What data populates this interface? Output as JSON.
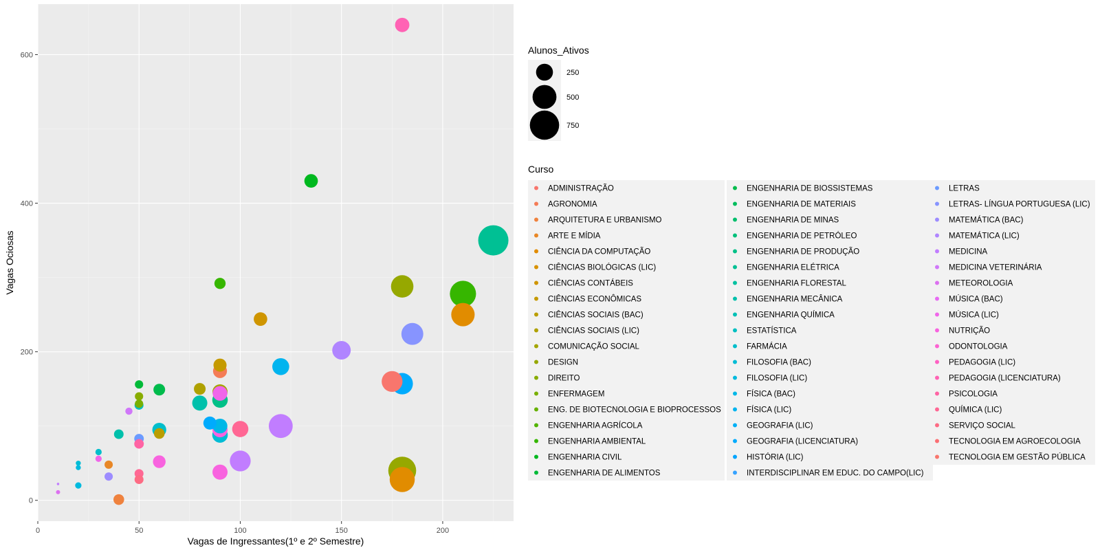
{
  "chart_data": {
    "type": "scatter",
    "xlabel": "Vagas de Ingressantes(1º e 2º Semestre)",
    "ylabel": "Vagas Ociosas",
    "xlim": [
      0,
      235
    ],
    "ylim": [
      -28,
      668
    ],
    "x_ticks": [
      "0",
      "50",
      "100",
      "150",
      "200"
    ],
    "y_ticks": [
      "0",
      "200",
      "400",
      "600"
    ],
    "grid": true,
    "size_legend": {
      "title": "Alunos_Ativos",
      "entries": [
        {
          "label": "250",
          "value": 250
        },
        {
          "label": "500",
          "value": 500
        },
        {
          "label": "750",
          "value": 750
        }
      ]
    },
    "color_legend": {
      "title": "Curso",
      "entries": [
        {
          "label": "ADMINISTRAÇÃO",
          "color": "#F8766D"
        },
        {
          "label": "AGRONOMIA",
          "color": "#F47C56"
        },
        {
          "label": "ARQUITETURA E URBANISMO",
          "color": "#EF823E"
        },
        {
          "label": "ARTE E MÍDIA",
          "color": "#E88726"
        },
        {
          "label": "CIÊNCIA DA COMPUTAÇÃO",
          "color": "#E18C00"
        },
        {
          "label": "CIÊNCIAS BIOLÓGICAS (LIC)",
          "color": "#D89200"
        },
        {
          "label": "CIÊNCIAS CONTÁBEIS",
          "color": "#CF9500"
        },
        {
          "label": "CIÊNCIAS ECONÔMICAS",
          "color": "#C59A00"
        },
        {
          "label": "CIÊNCIAS SOCIAIS (BAC)",
          "color": "#BA9E00"
        },
        {
          "label": "CIÊNCIAS SOCIAIS (LIC)",
          "color": "#AFA100"
        },
        {
          "label": "COMUNICAÇÃO SOCIAL",
          "color": "#A3A500"
        },
        {
          "label": "DESIGN",
          "color": "#96A800"
        },
        {
          "label": "DIREITO",
          "color": "#88AC00"
        },
        {
          "label": "ENFERMAGEM",
          "color": "#79AF00"
        },
        {
          "label": "ENG. DE BIOTECNOLOGIA E BIOPROCESSOS",
          "color": "#67B100"
        },
        {
          "label": "ENGENHARIA AGRÍCOLA",
          "color": "#52B400"
        },
        {
          "label": "ENGENHARIA AMBIENTAL",
          "color": "#36B600"
        },
        {
          "label": "ENGENHARIA CIVIL",
          "color": "#00B81F"
        },
        {
          "label": "ENGENHARIA DE ALIMENTOS",
          "color": "#00BA38"
        },
        {
          "label": "ENGENHARIA DE BIOSSISTEMAS",
          "color": "#00BB4C"
        },
        {
          "label": "ENGENHARIA DE MATERIAIS",
          "color": "#00BD5D"
        },
        {
          "label": "ENGENHARIA DE MINAS",
          "color": "#00BE6C"
        },
        {
          "label": "ENGENHARIA DE PETRÓLEO",
          "color": "#00BF7A"
        },
        {
          "label": "ENGENHARIA DE PRODUÇÃO",
          "color": "#00C087"
        },
        {
          "label": "ENGENHARIA ELÉTRICA",
          "color": "#00C094"
        },
        {
          "label": "ENGENHARIA FLORESTAL",
          "color": "#00C1A0"
        },
        {
          "label": "ENGENHARIA MECÂNICA",
          "color": "#00C0AB"
        },
        {
          "label": "ENGENHARIA QUÍMICA",
          "color": "#00C0B6"
        },
        {
          "label": "ESTATÍSTICA",
          "color": "#00BFC1"
        },
        {
          "label": "FARMÁCIA",
          "color": "#00BECB"
        },
        {
          "label": "FILOSOFIA (BAC)",
          "color": "#00BCD5"
        },
        {
          "label": "FILOSOFIA (LIC)",
          "color": "#00BADE"
        },
        {
          "label": "FÍSICA (BAC)",
          "color": "#00B7E7"
        },
        {
          "label": "FÍSICA (LIC)",
          "color": "#00B4EF"
        },
        {
          "label": "GEOGRAFIA (LIC)",
          "color": "#00B0F6"
        },
        {
          "label": "GEOGRAFIA (LICENCIATURA)",
          "color": "#00ABFD"
        },
        {
          "label": "HISTÓRIA (LIC)",
          "color": "#00A5FF"
        },
        {
          "label": "INTERDISCIPLINAR EM EDUC. DO CAMPO(LIC)",
          "color": "#35A2FF"
        },
        {
          "label": "LETRAS",
          "color": "#6B9BFF"
        },
        {
          "label": "LETRAS- LÍNGUA PORTUGUESA (LIC)",
          "color": "#8794FF"
        },
        {
          "label": "MATEMÁTICA (BAC)",
          "color": "#9D8CFF"
        },
        {
          "label": "MATEMÁTICA (LIC)",
          "color": "#B085FF"
        },
        {
          "label": "MEDICINA",
          "color": "#C17DFF"
        },
        {
          "label": "MEDICINA VETERINÁRIA",
          "color": "#D077F9"
        },
        {
          "label": "METEOROLOGIA",
          "color": "#DC71F0"
        },
        {
          "label": "MÚSICA (BAC)",
          "color": "#E76BF3"
        },
        {
          "label": "MÚSICA (LIC)",
          "color": "#F066EA"
        },
        {
          "label": "NUTRIÇÃO",
          "color": "#F863DF"
        },
        {
          "label": "ODONTOLOGIA",
          "color": "#FC63D2"
        },
        {
          "label": "PEDAGOGIA (LIC)",
          "color": "#FF61C3"
        },
        {
          "label": "PEDAGOGIA (LICENCIATURA)",
          "color": "#FF62B4"
        },
        {
          "label": "PSICOLOGIA",
          "color": "#FF64A4"
        },
        {
          "label": "QUÍMICA (LIC)",
          "color": "#FF6794"
        },
        {
          "label": "SERVIÇO SOCIAL",
          "color": "#FD6B84"
        },
        {
          "label": "TECNOLOGIA EM AGROECOLOGIA",
          "color": "#FB6F74"
        },
        {
          "label": "TECNOLOGIA EM GESTÃO PÚBLICA",
          "color": "#F8766D"
        }
      ]
    },
    "points": [
      {
        "x": 180,
        "y": 640,
        "size": 180,
        "color": "#FF62B4"
      },
      {
        "x": 135,
        "y": 430,
        "size": 160,
        "color": "#00B81F"
      },
      {
        "x": 225,
        "y": 350,
        "size": 800,
        "color": "#00C094"
      },
      {
        "x": 90,
        "y": 292,
        "size": 110,
        "color": "#36B600"
      },
      {
        "x": 180,
        "y": 288,
        "size": 440,
        "color": "#96A800"
      },
      {
        "x": 210,
        "y": 278,
        "size": 600,
        "color": "#36B600"
      },
      {
        "x": 210,
        "y": 250,
        "size": 480,
        "color": "#E18C00"
      },
      {
        "x": 110,
        "y": 244,
        "size": 160,
        "color": "#CF9500"
      },
      {
        "x": 185,
        "y": 224,
        "size": 420,
        "color": "#8794FF"
      },
      {
        "x": 150,
        "y": 202,
        "size": 300,
        "color": "#B085FF"
      },
      {
        "x": 90,
        "y": 182,
        "size": 150,
        "color": "#C59A00"
      },
      {
        "x": 120,
        "y": 180,
        "size": 250,
        "color": "#00B4EF"
      },
      {
        "x": 90,
        "y": 174,
        "size": 170,
        "color": "#F47C56"
      },
      {
        "x": 175,
        "y": 160,
        "size": 380,
        "color": "#F8766D"
      },
      {
        "x": 180,
        "y": 157,
        "size": 400,
        "color": "#00ABFD"
      },
      {
        "x": 50,
        "y": 156,
        "size": 60,
        "color": "#00BA38"
      },
      {
        "x": 80,
        "y": 150,
        "size": 120,
        "color": "#AFA100"
      },
      {
        "x": 60,
        "y": 149,
        "size": 120,
        "color": "#00BB4C"
      },
      {
        "x": 90,
        "y": 146,
        "size": 200,
        "color": "#A3A500"
      },
      {
        "x": 90,
        "y": 144,
        "size": 190,
        "color": "#F066EA"
      },
      {
        "x": 50,
        "y": 140,
        "size": 60,
        "color": "#88AC00"
      },
      {
        "x": 90,
        "y": 135,
        "size": 210,
        "color": "#00C087"
      },
      {
        "x": 80,
        "y": 131,
        "size": 200,
        "color": "#00C0AB"
      },
      {
        "x": 50,
        "y": 130,
        "size": 60,
        "color": "#79AF00"
      },
      {
        "x": 50,
        "y": 128,
        "size": 70,
        "color": "#00BFC1"
      },
      {
        "x": 45,
        "y": 120,
        "size": 45,
        "color": "#D077F9"
      },
      {
        "x": 85,
        "y": 104,
        "size": 150,
        "color": "#00ABFD"
      },
      {
        "x": 90,
        "y": 100,
        "size": 190,
        "color": "#00B7E7"
      },
      {
        "x": 120,
        "y": 100,
        "size": 500,
        "color": "#C17DFF"
      },
      {
        "x": 100,
        "y": 96,
        "size": 230,
        "color": "#FF6794"
      },
      {
        "x": 60,
        "y": 95,
        "size": 170,
        "color": "#00BECB"
      },
      {
        "x": 90,
        "y": 95,
        "size": 200,
        "color": "#F863DF"
      },
      {
        "x": 60,
        "y": 90,
        "size": 100,
        "color": "#BA9E00"
      },
      {
        "x": 40,
        "y": 89,
        "size": 80,
        "color": "#00C0AB"
      },
      {
        "x": 90,
        "y": 88,
        "size": 210,
        "color": "#00BCD5"
      },
      {
        "x": 50,
        "y": 83,
        "size": 80,
        "color": "#6B9BFF"
      },
      {
        "x": 50,
        "y": 76,
        "size": 80,
        "color": "#FF64A4"
      },
      {
        "x": 30,
        "y": 65,
        "size": 35,
        "color": "#00BECB"
      },
      {
        "x": 30,
        "y": 56,
        "size": 35,
        "color": "#F066EA"
      },
      {
        "x": 100,
        "y": 53,
        "size": 380,
        "color": "#C17DFF"
      },
      {
        "x": 60,
        "y": 52,
        "size": 140,
        "color": "#F863DF"
      },
      {
        "x": 20,
        "y": 50,
        "size": 22,
        "color": "#00BCD5"
      },
      {
        "x": 35,
        "y": 48,
        "size": 60,
        "color": "#E88726"
      },
      {
        "x": 20,
        "y": 44,
        "size": 22,
        "color": "#00BADE"
      },
      {
        "x": 180,
        "y": 40,
        "size": 680,
        "color": "#96A800"
      },
      {
        "x": 90,
        "y": 38,
        "size": 200,
        "color": "#F863DF"
      },
      {
        "x": 50,
        "y": 36,
        "size": 70,
        "color": "#FF6794"
      },
      {
        "x": 35,
        "y": 32,
        "size": 60,
        "color": "#9D8CFF"
      },
      {
        "x": 180,
        "y": 28,
        "size": 550,
        "color": "#E18C00"
      },
      {
        "x": 50,
        "y": 28,
        "size": 70,
        "color": "#FD6B84"
      },
      {
        "x": 10,
        "y": 22,
        "size": 2,
        "color": "#C17DFF"
      },
      {
        "x": 20,
        "y": 20,
        "size": 35,
        "color": "#00BADE"
      },
      {
        "x": 10,
        "y": 11,
        "size": 15,
        "color": "#DC71F0"
      },
      {
        "x": 40,
        "y": 1,
        "size": 100,
        "color": "#EF823E"
      }
    ]
  }
}
